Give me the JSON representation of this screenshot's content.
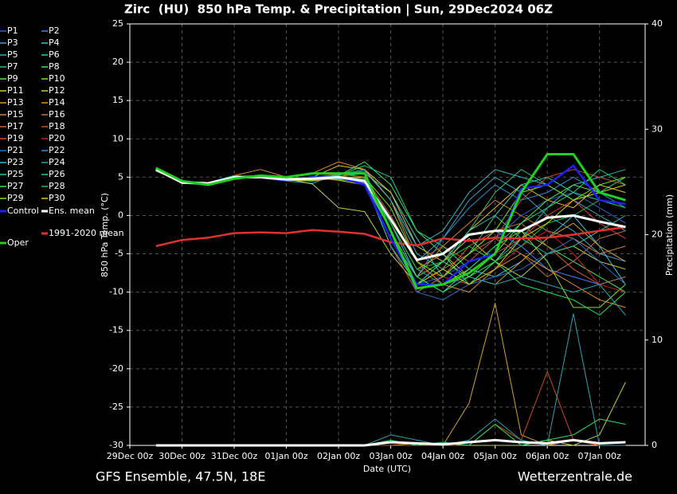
{
  "chart_data": {
    "type": "line",
    "title": "Zirc  (HU)  850 hPa Temp. & Precipitation | Sun, 29Dec2024 06Z",
    "footer_left": "GFS Ensemble, 47.5N, 18E",
    "footer_right": "Wetterzentrale.de",
    "x_label": "Date (UTC)",
    "y_label": "850 hPa Temp. (°C)",
    "y2_label": "Precipitation (mm)",
    "x": [
      12,
      24,
      36,
      48,
      60,
      72,
      84,
      96,
      108,
      120,
      132,
      144,
      156,
      168,
      180,
      192,
      204,
      216,
      228
    ],
    "xlim": [
      0,
      237
    ],
    "xticks": [
      {
        "value": 0,
        "label": "29Dec 00z"
      },
      {
        "value": 24,
        "label": "30Dec 00z"
      },
      {
        "value": 48,
        "label": "31Dec 00z"
      },
      {
        "value": 72,
        "label": "01Jan 00z"
      },
      {
        "value": 96,
        "label": "02Jan 00z"
      },
      {
        "value": 120,
        "label": "03Jan 00z"
      },
      {
        "value": 144,
        "label": "04Jan 00z"
      },
      {
        "value": 168,
        "label": "05Jan 00z"
      },
      {
        "value": 192,
        "label": "06Jan 00z"
      },
      {
        "value": 216,
        "label": "07Jan 00z"
      }
    ],
    "ylim": [
      -30,
      25
    ],
    "yticks": [
      -30,
      -25,
      -20,
      -15,
      -10,
      -5,
      0,
      5,
      10,
      15,
      20,
      25
    ],
    "y2lim": [
      0,
      40
    ],
    "y2ticks": [
      0,
      10,
      20,
      30,
      40
    ],
    "grid": true,
    "series": [
      {
        "name": "P1",
        "color": "#3060d0",
        "values": [
          6,
          4.4,
          4.1,
          5,
          5.1,
          4.6,
          4.5,
          5.2,
          4,
          -3,
          -9,
          -8,
          -6,
          -3,
          0,
          2,
          3,
          1,
          -1
        ]
      },
      {
        "name": "P2",
        "color": "#4080ff",
        "values": [
          6.1,
          4.2,
          4.3,
          4.9,
          5,
          4.8,
          5,
          4.8,
          4.2,
          -2,
          -10,
          -8,
          -5,
          -2,
          -4,
          -7,
          -8,
          -9,
          -8
        ]
      },
      {
        "name": "P3",
        "color": "#40a0c0",
        "values": [
          5.9,
          4.3,
          4,
          5.1,
          4.9,
          4.5,
          4.2,
          5.5,
          5,
          0,
          -6,
          -3,
          2,
          5,
          3,
          0,
          -2,
          -5,
          -6
        ]
      },
      {
        "name": "P4",
        "color": "#40c0e0",
        "values": [
          6,
          4.5,
          4.2,
          5,
          5.2,
          4.7,
          4.9,
          5,
          4.6,
          -1,
          -8,
          -10,
          -7,
          -8,
          -6,
          -3,
          0,
          -4,
          -9
        ]
      },
      {
        "name": "P5",
        "color": "#30b0b0",
        "values": [
          6.2,
          4.3,
          4.1,
          4.8,
          5,
          4.6,
          4.7,
          5.3,
          6,
          2,
          -5,
          -7,
          -9,
          -6,
          -3,
          1,
          4,
          5,
          6
        ]
      },
      {
        "name": "P6",
        "color": "#30d0a0",
        "values": [
          6,
          4.2,
          4,
          5,
          5.1,
          4.9,
          4.8,
          5.1,
          5.5,
          3,
          -3,
          -8,
          -5,
          0,
          4,
          5,
          3,
          2,
          1
        ]
      },
      {
        "name": "P7",
        "color": "#30c080",
        "values": [
          5.8,
          4.4,
          4.3,
          5.2,
          4.9,
          4.6,
          5,
          4.9,
          4.4,
          -4,
          -9,
          -7,
          -2,
          3,
          6,
          4,
          2,
          3,
          5
        ]
      },
      {
        "name": "P8",
        "color": "#40e060",
        "values": [
          6,
          4.3,
          4.2,
          5,
          5,
          4.8,
          4.6,
          5.2,
          7,
          4,
          -2,
          -5,
          -9,
          -6,
          -2,
          -4,
          -6,
          -8,
          -10
        ]
      },
      {
        "name": "P9",
        "color": "#60e040",
        "values": [
          6.1,
          4.5,
          4,
          4.9,
          5.1,
          4.7,
          4.8,
          4.7,
          4.3,
          -3,
          -8,
          -6,
          -8,
          -5,
          -1,
          2,
          4,
          3,
          2
        ]
      },
      {
        "name": "P10",
        "color": "#80e020",
        "values": [
          6,
          4.2,
          4.1,
          5.1,
          5,
          4.6,
          5.1,
          5,
          4.8,
          -2,
          -9,
          -9,
          -7,
          -4,
          -2,
          -6,
          -12,
          -12,
          -9
        ]
      },
      {
        "name": "P11",
        "color": "#c0d040",
        "values": [
          5.9,
          4.4,
          4.2,
          5,
          5.2,
          4.8,
          4.1,
          1,
          0.5,
          -5,
          -9,
          -6,
          -3,
          -6,
          -8,
          -5,
          -4,
          -6,
          -7
        ],
        "precip": [
          0,
          0,
          0,
          0,
          0,
          0,
          0,
          0,
          0,
          0,
          0,
          0.2,
          0,
          0,
          0,
          0.5,
          0,
          1,
          6
        ]
      },
      {
        "name": "P12",
        "color": "#e0c040",
        "values": [
          6,
          4.3,
          4.3,
          5,
          5,
          4.7,
          5,
          6.5,
          6,
          3,
          -4,
          -6,
          -2,
          1,
          4,
          2,
          1,
          4,
          3
        ]
      },
      {
        "name": "P13",
        "color": "#d0a030",
        "values": [
          6.1,
          4.5,
          4,
          4.8,
          5.1,
          4.6,
          4.5,
          4.9,
          4.5,
          -1,
          -7,
          -5,
          -8,
          -9,
          -6,
          -3,
          -1,
          -4,
          -6
        ],
        "precip": [
          0,
          0,
          0,
          0,
          0,
          0,
          0,
          0,
          0,
          0,
          0.2,
          0,
          4,
          13.5,
          1,
          0,
          0.5,
          0,
          0
        ]
      },
      {
        "name": "P14",
        "color": "#e09030",
        "values": [
          6,
          4.2,
          4.2,
          5.2,
          6,
          5,
          5.5,
          7,
          6,
          2,
          -6,
          -9,
          -10,
          -7,
          -5,
          -7,
          -9,
          -11,
          -12
        ]
      },
      {
        "name": "P15",
        "color": "#d08040",
        "values": [
          5.8,
          4.3,
          4.1,
          5,
          5,
          4.9,
          4.7,
          5,
          4.2,
          -3,
          -8,
          -4,
          -1,
          2,
          0,
          -2,
          -3,
          -5,
          -4
        ]
      },
      {
        "name": "P16",
        "color": "#c07050",
        "values": [
          6,
          4.4,
          4.3,
          4.9,
          5.1,
          4.7,
          4.9,
          5.1,
          4.6,
          -2,
          -9,
          -7,
          -5,
          -3,
          -5,
          -8,
          -6,
          -3,
          -2
        ]
      },
      {
        "name": "P17",
        "color": "#d06030",
        "values": [
          6.1,
          4.3,
          4,
          5,
          5,
          4.6,
          4.8,
          4.8,
          4.4,
          -4,
          -10,
          -8,
          -4,
          -2,
          -1,
          -4,
          -7,
          -9,
          -8
        ]
      },
      {
        "name": "P18",
        "color": "#c05020",
        "values": [
          6,
          4.5,
          4.2,
          5.1,
          5.2,
          4.8,
          5,
          5.4,
          5,
          0,
          -6,
          -4,
          -6,
          -3,
          2,
          5,
          6,
          5,
          4
        ],
        "precip": [
          0,
          0,
          0,
          0,
          0,
          0,
          0,
          0,
          0,
          0,
          0,
          0,
          0,
          2,
          0.5,
          7,
          0.5,
          0,
          0
        ]
      },
      {
        "name": "P19",
        "color": "#e04040",
        "values": [
          5.9,
          4.2,
          4.1,
          4.9,
          5,
          4.7,
          4.6,
          5,
          4.3,
          -3,
          -9,
          -9,
          -6,
          -5,
          -3,
          0,
          2,
          -1,
          -3
        ]
      },
      {
        "name": "P20",
        "color": "#c02020",
        "values": [
          6,
          4.4,
          4.2,
          5,
          5.1,
          4.6,
          4.9,
          5.2,
          4.7,
          -1,
          -7,
          -8,
          -9,
          -7,
          -4,
          -2,
          -5,
          -9,
          -10
        ]
      },
      {
        "name": "P21",
        "color": "#3070c0",
        "values": [
          6.2,
          4.3,
          4,
          5,
          4.9,
          4.8,
          4.7,
          5.1,
          4.5,
          -2,
          -10,
          -11,
          -9,
          -8,
          -7,
          -5,
          -3,
          -6,
          -9
        ]
      },
      {
        "name": "P22",
        "color": "#3090d0",
        "values": [
          6,
          4.5,
          4.3,
          5.2,
          5,
          4.7,
          5,
          4.9,
          4.2,
          -3,
          -8,
          -3,
          1,
          4,
          2,
          3,
          5,
          3,
          1
        ]
      },
      {
        "name": "P23",
        "color": "#40b0c0",
        "values": [
          5.9,
          4.3,
          4.1,
          4.9,
          5.1,
          4.6,
          4.8,
          5.3,
          5.8,
          2,
          -4,
          -2,
          3,
          6,
          5,
          4,
          2,
          0,
          -2
        ]
      },
      {
        "name": "P24",
        "color": "#30a0b0",
        "values": [
          6,
          4.2,
          4.2,
          5,
          5,
          4.8,
          4.9,
          5,
          4.6,
          -1,
          -7,
          -9,
          -8,
          -9,
          -8,
          -9,
          -10,
          -9,
          -13
        ],
        "precip": [
          0,
          0,
          0,
          0,
          0,
          0,
          0,
          0,
          0,
          1,
          0.5,
          0,
          0.5,
          2.5,
          0.5,
          0,
          12.5,
          0,
          0
        ]
      },
      {
        "name": "P25",
        "color": "#30c0a0",
        "values": [
          6.1,
          4.4,
          4,
          5.1,
          5.2,
          4.7,
          4.7,
          4.8,
          4.4,
          -4,
          -9,
          -6,
          -2,
          0,
          -3,
          -5,
          -4,
          -2,
          0
        ]
      },
      {
        "name": "P26",
        "color": "#20d080",
        "values": [
          6,
          4.3,
          4.3,
          5,
          5,
          4.6,
          5,
          5.2,
          6.5,
          5,
          -2,
          -4,
          -7,
          -4,
          -1,
          1,
          3,
          6,
          4
        ]
      },
      {
        "name": "P27",
        "color": "#30e060",
        "values": [
          5.8,
          4.5,
          4.1,
          4.9,
          5.1,
          4.8,
          4.8,
          5,
          4.5,
          -2,
          -8,
          -10,
          -8,
          -6,
          -9,
          -10,
          -11,
          -13,
          -10
        ],
        "precip": [
          0,
          0,
          0,
          0,
          0,
          0,
          0,
          0,
          0,
          0.5,
          0,
          0.3,
          0,
          2,
          0,
          0.5,
          1,
          2.5,
          2
        ]
      },
      {
        "name": "P28",
        "color": "#20c040",
        "values": [
          6,
          4.3,
          4.2,
          5.2,
          5,
          4.7,
          4.9,
          5.1,
          4.8,
          -1,
          -7,
          -6,
          -4,
          -6,
          -4,
          -1,
          0,
          2,
          1
        ]
      },
      {
        "name": "P29",
        "color": "#80e000",
        "values": [
          6.1,
          4.4,
          4,
          5,
          5.1,
          4.6,
          4.6,
          5,
          5,
          1,
          -6,
          -8,
          -5,
          -2,
          3,
          4,
          2,
          4,
          5
        ]
      },
      {
        "name": "P30",
        "color": "#d0d000",
        "values": [
          6,
          4.2,
          4.3,
          5,
          5,
          4.8,
          5,
          4.6,
          4,
          -3,
          -9,
          -7,
          -9,
          -7,
          -3,
          -1,
          2,
          3,
          4
        ]
      },
      {
        "name": "Control",
        "color": "#2020ff",
        "values": [
          6,
          4.3,
          4.2,
          5,
          5,
          4.6,
          5,
          5,
          4,
          -3,
          -9,
          -9,
          -6,
          -5,
          3.5,
          4,
          6.5,
          2,
          1.5
        ]
      },
      {
        "name": "Ens. mean",
        "color": "#ffffff",
        "values": [
          6,
          4.3,
          4.2,
          5,
          5,
          4.7,
          4.8,
          5,
          4.5,
          -0.5,
          -5.8,
          -5,
          -2.5,
          -2,
          -2,
          -0.3,
          0,
          -0.8,
          -1.5
        ],
        "precip": [
          0,
          0,
          0,
          0,
          0,
          0,
          0,
          0,
          0,
          0.3,
          0.2,
          0.1,
          0.3,
          0.5,
          0.3,
          0.2,
          0.5,
          0.2,
          0.3
        ]
      },
      {
        "name": "1991-2020 mean",
        "color": "#e03030",
        "values": [
          -4,
          -3.2,
          -2.9,
          -2.3,
          -2.2,
          -2.3,
          -1.9,
          -2.1,
          -2.4,
          -3.5,
          -3.9,
          -3,
          -3.3,
          -2.9,
          -3,
          -2.9,
          -2.5,
          -2,
          -1.5
        ]
      },
      {
        "name": "Oper",
        "color": "#20d020",
        "values": [
          6.2,
          4.5,
          4,
          4.8,
          5.2,
          5,
          5.5,
          5.5,
          5.5,
          -2,
          -9.5,
          -9,
          -7.5,
          -5,
          3,
          8,
          8,
          3,
          2
        ]
      }
    ]
  }
}
